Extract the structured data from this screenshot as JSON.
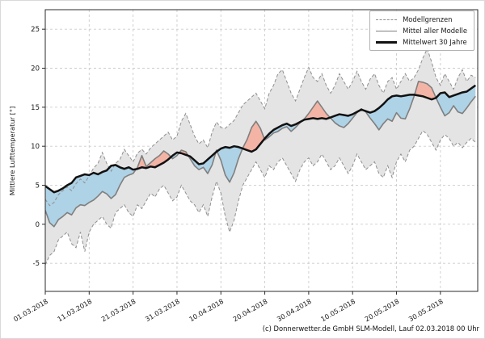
{
  "figure": {
    "caption": "(c) Donnerwetter.de GmbH SLM-Modell, Lauf 02.03.2018 00 Uhr"
  },
  "chart_data": {
    "type": "line",
    "title": "",
    "xlabel": "",
    "ylabel": "Mittlere Lufttemperatur [°]",
    "x_unit": "days, daily values from 01.03.2018",
    "grid": true,
    "legend_position": "upper right",
    "legend_entries": [
      "Modellgrenzen",
      "Mittel aller Modelle",
      "Mittelwert 30 Jahre"
    ],
    "y_ticks": [
      -5,
      0,
      5,
      10,
      15,
      20,
      25
    ],
    "x_tick_days": [
      0,
      10,
      20,
      30,
      40,
      50,
      60,
      70,
      80,
      90
    ],
    "x_tick_labels": [
      "01.03.2018",
      "11.03.2018",
      "21.03.2018",
      "31.03.2018",
      "10.04.2018",
      "20.04.2018",
      "30.04.2018",
      "10.05.2018",
      "20.05.2018",
      "30.05.2018"
    ],
    "ylim": [
      -8.6,
      27.5
    ],
    "xlim": [
      0,
      98.5
    ],
    "colors": {
      "band_fill": "#e4e4e4",
      "bound_line": "#8f8f8f",
      "mean_line": "#7f7f7f",
      "climate_line": "#111111",
      "below_fill": "#aed2e6",
      "above_fill": "#f3b4a6",
      "grid": "#cccccc",
      "spine": "#2b2b2b"
    },
    "series": [
      {
        "name": "Modellgrenzen (oben)",
        "role": "upper_bound",
        "style": "dashed-gray",
        "values": [
          3.2,
          2.4,
          2.8,
          3.8,
          4.3,
          4.8,
          4.3,
          5.2,
          5.8,
          5.3,
          6.2,
          7.2,
          7.8,
          9.2,
          7.8,
          6.8,
          7.8,
          8.3,
          9.6,
          8.8,
          8.0,
          9.1,
          9.6,
          9.0,
          9.8,
          10.3,
          10.8,
          11.3,
          11.8,
          10.8,
          11.3,
          13.2,
          14.2,
          12.8,
          11.3,
          10.3,
          10.8,
          9.8,
          11.8,
          13.1,
          12.4,
          12.3,
          12.8,
          13.3,
          14.3,
          15.3,
          15.8,
          16.3,
          16.8,
          15.8,
          14.8,
          16.8,
          17.8,
          19.3,
          19.8,
          18.3,
          16.8,
          15.8,
          17.3,
          18.8,
          20.1,
          18.8,
          18.3,
          19.3,
          17.8,
          16.8,
          17.8,
          19.3,
          18.3,
          17.3,
          18.3,
          19.6,
          18.3,
          17.3,
          18.6,
          19.3,
          17.8,
          16.8,
          18.3,
          18.8,
          17.3,
          18.3,
          19.3,
          18.3,
          18.8,
          19.8,
          21.3,
          22.5,
          20.8,
          18.8,
          17.8,
          19.3,
          18.3,
          17.3,
          18.8,
          19.8,
          18.3,
          19.1,
          18.8
        ]
      },
      {
        "name": "Modellgrenzen (unten)",
        "role": "lower_bound",
        "style": "dashed-gray",
        "values": [
          -5.2,
          -4.0,
          -3.5,
          -2.0,
          -1.5,
          -1.0,
          -2.5,
          -3.0,
          -1.0,
          -3.5,
          -1.0,
          0.0,
          0.5,
          1.0,
          0.0,
          -0.5,
          1.5,
          2.0,
          2.5,
          1.5,
          1.0,
          2.5,
          2.0,
          3.0,
          4.0,
          3.5,
          4.5,
          5.0,
          4.0,
          3.0,
          3.5,
          5.0,
          4.0,
          3.0,
          2.5,
          1.5,
          2.5,
          1.0,
          3.5,
          5.5,
          4.0,
          1.0,
          -1.0,
          0.5,
          3.0,
          5.0,
          6.0,
          7.0,
          8.0,
          7.0,
          6.0,
          7.5,
          7.0,
          8.0,
          8.5,
          7.5,
          6.5,
          5.5,
          7.0,
          8.0,
          8.5,
          7.5,
          8.0,
          9.0,
          8.0,
          7.0,
          7.5,
          8.5,
          7.5,
          6.5,
          7.5,
          9.0,
          8.0,
          7.0,
          7.5,
          8.0,
          6.5,
          6.0,
          7.5,
          6.0,
          8.0,
          9.0,
          8.0,
          9.5,
          10.0,
          11.0,
          12.0,
          11.5,
          10.5,
          9.5,
          10.8,
          11.5,
          11.0,
          10.0,
          10.5,
          9.8,
          10.5,
          11.0,
          10.5
        ]
      },
      {
        "name": "Mittel aller Modelle",
        "role": "ensemble_mean",
        "style": "solid-gray",
        "values": [
          1.8,
          0.2,
          -0.3,
          0.6,
          1.0,
          1.5,
          1.2,
          2.1,
          2.5,
          2.4,
          2.8,
          3.1,
          3.6,
          4.2,
          3.9,
          3.3,
          3.8,
          5.0,
          6.0,
          6.3,
          6.5,
          7.3,
          8.8,
          7.4,
          7.9,
          8.4,
          8.8,
          9.4,
          9.0,
          8.4,
          8.8,
          9.5,
          9.3,
          8.4,
          7.5,
          7.0,
          7.3,
          6.5,
          7.6,
          9.5,
          8.2,
          6.3,
          5.4,
          6.6,
          8.4,
          9.8,
          10.9,
          12.4,
          13.2,
          12.3,
          10.8,
          11.2,
          11.7,
          11.9,
          12.3,
          12.5,
          11.9,
          12.4,
          13.0,
          13.5,
          14.2,
          15.0,
          15.8,
          15.0,
          14.2,
          13.6,
          13.0,
          12.6,
          12.4,
          12.9,
          13.6,
          14.3,
          14.8,
          14.4,
          13.6,
          12.9,
          12.1,
          12.9,
          13.5,
          13.2,
          14.3,
          13.6,
          13.5,
          14.8,
          16.4,
          18.3,
          18.2,
          18.0,
          17.5,
          16.2,
          15.0,
          13.9,
          14.3,
          15.2,
          14.4,
          14.2,
          14.9,
          15.7,
          16.4
        ]
      },
      {
        "name": "Mittelwert 30 Jahre",
        "role": "climate_mean",
        "style": "solid-black-thick",
        "values": [
          4.9,
          4.5,
          4.1,
          4.3,
          4.6,
          5.0,
          5.3,
          6.0,
          6.2,
          6.4,
          6.3,
          6.6,
          6.4,
          6.7,
          6.9,
          7.5,
          7.6,
          7.3,
          7.1,
          7.3,
          7.0,
          7.1,
          7.3,
          7.2,
          7.4,
          7.3,
          7.6,
          7.9,
          8.3,
          8.8,
          9.2,
          9.1,
          8.9,
          8.7,
          8.2,
          7.7,
          7.8,
          8.3,
          8.8,
          9.3,
          9.7,
          9.9,
          9.8,
          10.0,
          9.9,
          9.7,
          9.5,
          9.3,
          9.6,
          10.3,
          11.0,
          11.6,
          12.1,
          12.4,
          12.7,
          12.9,
          12.6,
          12.8,
          13.1,
          13.4,
          13.5,
          13.6,
          13.5,
          13.6,
          13.5,
          13.7,
          13.9,
          14.1,
          14.0,
          13.9,
          14.1,
          14.4,
          14.7,
          14.5,
          14.3,
          14.5,
          14.9,
          15.4,
          16.0,
          16.4,
          16.5,
          16.4,
          16.5,
          16.6,
          16.6,
          16.5,
          16.4,
          16.2,
          16.0,
          16.2,
          16.8,
          16.9,
          16.3,
          16.5,
          16.7,
          16.9,
          17.0,
          17.4,
          17.8
        ]
      }
    ],
    "fills": {
      "band": "gray band between model min and max (Modellgrenzen)",
      "below_normal": "blue fill where ensemble mean is below 30-year mean",
      "above_normal": "red fill where ensemble mean is above 30-year mean"
    }
  }
}
